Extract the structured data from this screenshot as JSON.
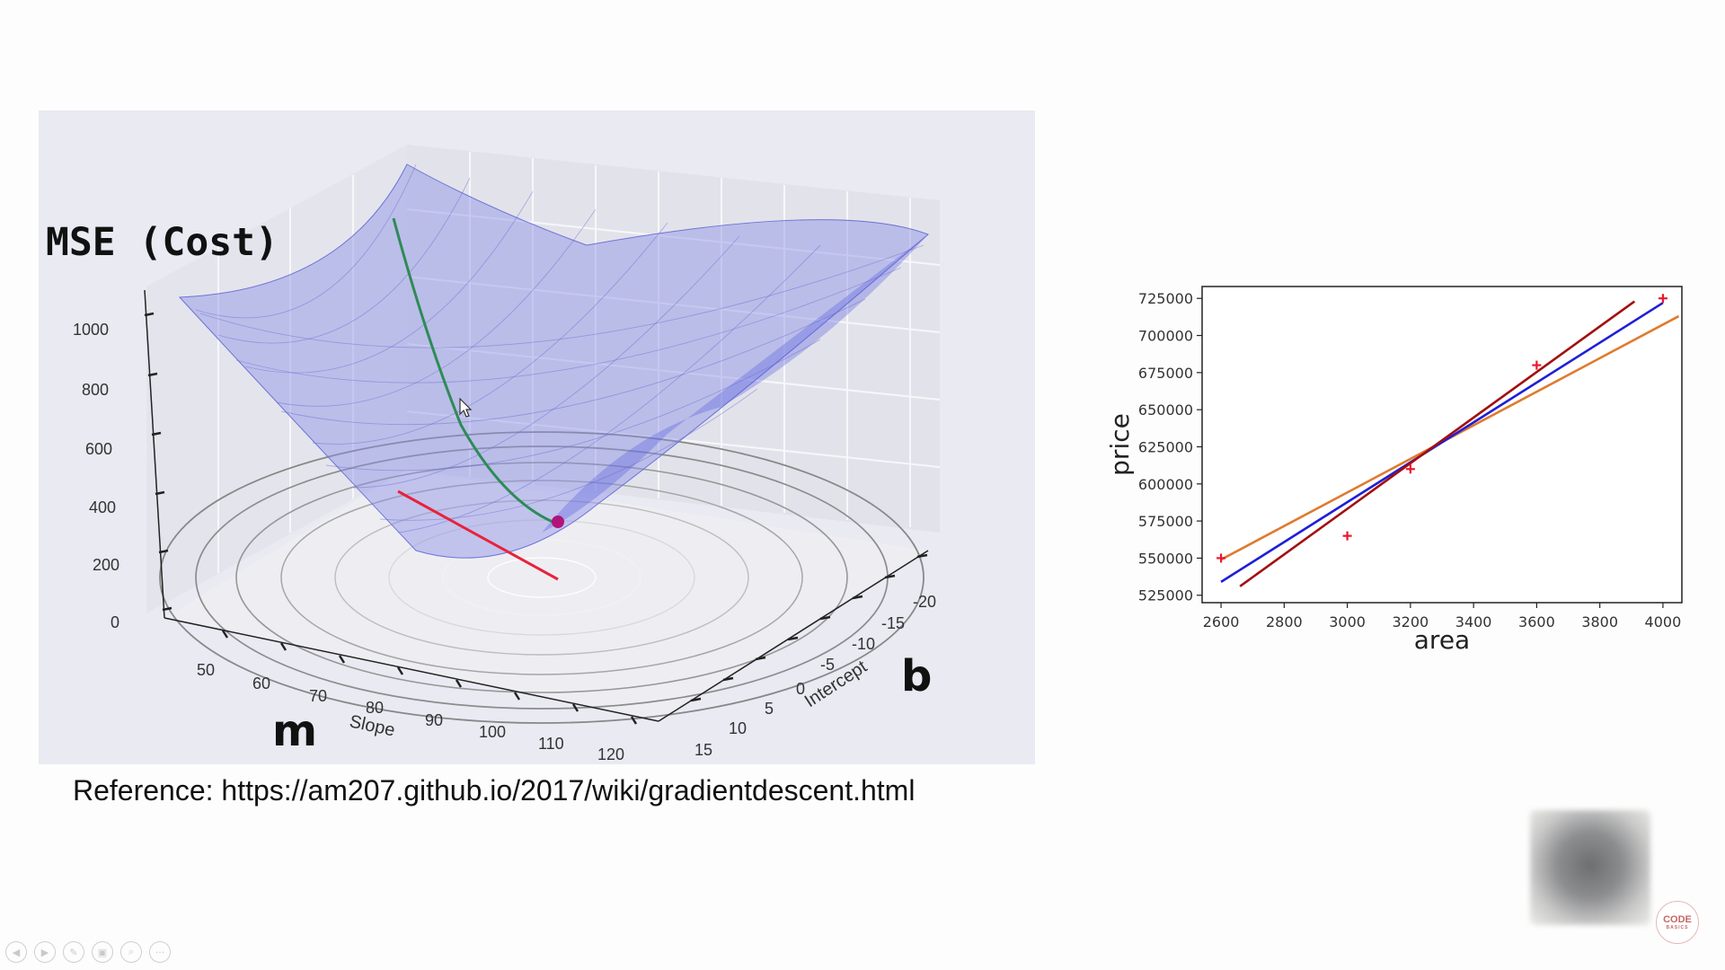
{
  "surface": {
    "z_axis_label": "MSE (Cost)",
    "m_label": "m",
    "b_label": "b",
    "z_ticks": [
      "1000",
      "800",
      "600",
      "400",
      "200",
      "0"
    ],
    "slope_ticks": [
      "50",
      "60",
      "70",
      "80",
      "90",
      "100",
      "110",
      "120"
    ],
    "slope_label": "Slope",
    "intercept_ticks": [
      "15",
      "10",
      "5",
      "0",
      "-5",
      "-10",
      "-15",
      "-20"
    ],
    "intercept_label": "Intercept",
    "surface_color": "#7b7fe0",
    "path_color": "#2e8b57",
    "tangent_color": "#e8223a",
    "point_color": "#b0147a"
  },
  "reference": {
    "text": "Reference: https://am207.github.io/2017/wiki/gradientdescent.html"
  },
  "chart_data": {
    "type": "scatter",
    "xlabel": "area",
    "ylabel": "price",
    "xlim": [
      2540,
      4060
    ],
    "ylim": [
      520000,
      733000
    ],
    "x_ticks": [
      2600,
      2800,
      3000,
      3200,
      3400,
      3600,
      3800,
      4000
    ],
    "y_ticks": [
      525000,
      550000,
      575000,
      600000,
      625000,
      650000,
      675000,
      700000,
      725000
    ],
    "grid": false,
    "points": [
      {
        "x": 2600,
        "y": 550000
      },
      {
        "x": 3000,
        "y": 565000
      },
      {
        "x": 3200,
        "y": 610000
      },
      {
        "x": 3600,
        "y": 680000
      },
      {
        "x": 4000,
        "y": 725000
      }
    ],
    "point_color": "#e8192c",
    "lines": [
      {
        "color": "#e07a2e",
        "x": [
          2600,
          4050
        ],
        "y": [
          549000,
          713000
        ]
      },
      {
        "color": "#1f1fd6",
        "x": [
          2600,
          4000
        ],
        "y": [
          534000,
          722000
        ]
      },
      {
        "color": "#a30f0f",
        "x": [
          2660,
          3910
        ],
        "y": [
          531000,
          723000
        ]
      }
    ]
  },
  "slide_controls": {
    "icons": [
      "previous-icon",
      "next-icon",
      "pen-icon",
      "slides-icon",
      "zoom-icon",
      "more-icon"
    ]
  }
}
